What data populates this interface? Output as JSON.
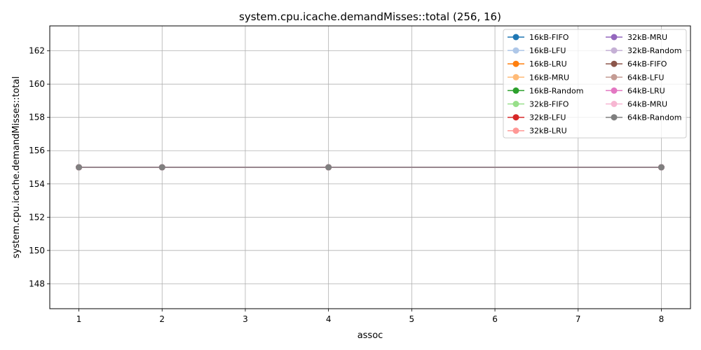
{
  "chart_data": {
    "type": "line",
    "title": "system.cpu.icache.demandMisses::total (256, 16)",
    "xlabel": "assoc",
    "ylabel": "system.cpu.icache.demandMisses::total",
    "x": [
      1,
      2,
      4,
      8
    ],
    "xlim": [
      0.65,
      8.35
    ],
    "ylim": [
      146.5,
      163.5
    ],
    "xticks": [
      "1",
      "2",
      "3",
      "4",
      "5",
      "6",
      "7",
      "8"
    ],
    "yticks": [
      "148",
      "150",
      "152",
      "154",
      "156",
      "158",
      "160",
      "162"
    ],
    "grid": true,
    "legend_placement": "top-right",
    "legend_columns": 2,
    "series": [
      {
        "name": "16kB-FIFO",
        "color": "#1f77b4",
        "values": [
          155,
          155,
          155,
          155
        ]
      },
      {
        "name": "16kB-LFU",
        "color": "#aec7e8",
        "values": [
          155,
          155,
          155,
          155
        ]
      },
      {
        "name": "16kB-LRU",
        "color": "#ff7f0e",
        "values": [
          155,
          155,
          155,
          155
        ]
      },
      {
        "name": "16kB-MRU",
        "color": "#ffbb78",
        "values": [
          155,
          155,
          155,
          155
        ]
      },
      {
        "name": "16kB-Random",
        "color": "#2ca02c",
        "values": [
          155,
          155,
          155,
          155
        ]
      },
      {
        "name": "32kB-FIFO",
        "color": "#98df8a",
        "values": [
          155,
          155,
          155,
          155
        ]
      },
      {
        "name": "32kB-LFU",
        "color": "#d62728",
        "values": [
          155,
          155,
          155,
          155
        ]
      },
      {
        "name": "32kB-LRU",
        "color": "#ff9896",
        "values": [
          155,
          155,
          155,
          155
        ]
      },
      {
        "name": "32kB-MRU",
        "color": "#9467bd",
        "values": [
          155,
          155,
          155,
          155
        ]
      },
      {
        "name": "32kB-Random",
        "color": "#c5b0d5",
        "values": [
          155,
          155,
          155,
          155
        ]
      },
      {
        "name": "64kB-FIFO",
        "color": "#8c564b",
        "values": [
          155,
          155,
          155,
          155
        ]
      },
      {
        "name": "64kB-LFU",
        "color": "#c49c94",
        "values": [
          155,
          155,
          155,
          155
        ]
      },
      {
        "name": "64kB-LRU",
        "color": "#e377c2",
        "values": [
          155,
          155,
          155,
          155
        ]
      },
      {
        "name": "64kB-MRU",
        "color": "#f7b6d2",
        "values": [
          155,
          155,
          155,
          155
        ]
      },
      {
        "name": "64kB-Random",
        "color": "#7f7f7f",
        "values": [
          155,
          155,
          155,
          155
        ]
      }
    ]
  }
}
